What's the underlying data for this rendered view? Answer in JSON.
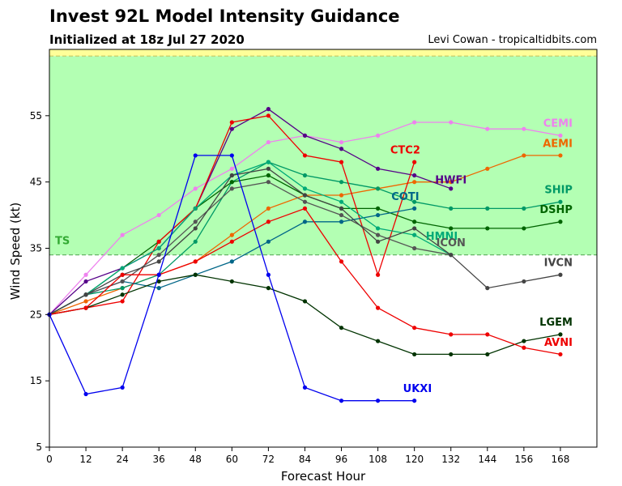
{
  "header": {
    "title": "Invest 92L Model Intensity Guidance",
    "subtitle": "Initialized at 18z Jul 27 2020",
    "credit": "Levi Cowan - tropicaltidbits.com"
  },
  "chart_data": {
    "type": "line",
    "xlabel": "Forecast Hour",
    "ylabel": "Wind Speed (kt)",
    "xlim": [
      0,
      180
    ],
    "ylim": [
      5,
      65
    ],
    "xticks": [
      0,
      12,
      24,
      36,
      48,
      60,
      72,
      84,
      96,
      108,
      120,
      132,
      144,
      156,
      168
    ],
    "yticks": [
      5,
      15,
      25,
      35,
      45,
      55
    ],
    "bands": [
      {
        "label": "TS",
        "from": 34,
        "to": 64,
        "color": "#b3ffb3",
        "label_color": "#33aa33",
        "edge_color": "#5cad5c"
      },
      {
        "label": "",
        "from": 64,
        "to": 65,
        "color": "#ffff99",
        "edge_color": "#c8c864"
      }
    ],
    "series": [
      {
        "name": "CEMI",
        "color": "#ee82ee",
        "x": [
          0,
          12,
          24,
          36,
          48,
          60,
          72,
          84,
          96,
          108,
          120,
          132,
          144,
          156,
          168
        ],
        "y": [
          25,
          31,
          37,
          40,
          44,
          47,
          51,
          52,
          51,
          52,
          54,
          54,
          53,
          53,
          52
        ]
      },
      {
        "name": "AEMI",
        "color": "#ee6600",
        "x": [
          0,
          12,
          24,
          36,
          48,
          60,
          72,
          84,
          96,
          108,
          120,
          132,
          144,
          156,
          168
        ],
        "y": [
          25,
          27,
          29,
          31,
          33,
          37,
          41,
          43,
          43,
          44,
          45,
          45,
          47,
          49,
          49
        ]
      },
      {
        "name": "SHIP",
        "color": "#009966",
        "x": [
          0,
          12,
          24,
          36,
          48,
          60,
          72,
          84,
          96,
          108,
          120,
          132,
          144,
          156,
          168
        ],
        "y": [
          25,
          28,
          29,
          31,
          36,
          45,
          48,
          46,
          45,
          44,
          42,
          41,
          41,
          41,
          42
        ]
      },
      {
        "name": "DSHP",
        "color": "#006400",
        "x": [
          0,
          12,
          24,
          36,
          48,
          60,
          72,
          84,
          96,
          108,
          120,
          132,
          144,
          156,
          168
        ],
        "y": [
          25,
          28,
          32,
          36,
          41,
          45,
          46,
          43,
          41,
          41,
          39,
          38,
          38,
          38,
          39
        ]
      },
      {
        "name": "HWFI",
        "color": "#550088",
        "x": [
          0,
          12,
          24,
          36,
          48,
          60,
          72,
          84,
          96,
          108,
          120,
          132
        ],
        "y": [
          25,
          30,
          32,
          35,
          41,
          53,
          56,
          52,
          50,
          47,
          46,
          44
        ]
      },
      {
        "name": "CTC2",
        "color": "#ee0000",
        "x": [
          0,
          12,
          24,
          36,
          48,
          60,
          72,
          84,
          96,
          108,
          120
        ],
        "y": [
          25,
          26,
          27,
          36,
          41,
          54,
          55,
          49,
          48,
          31,
          48
        ]
      },
      {
        "name": "COTI",
        "color": "#006688",
        "x": [
          0,
          12,
          24,
          36,
          48,
          60,
          72,
          84,
          96,
          108,
          120
        ],
        "y": [
          25,
          28,
          30,
          29,
          31,
          33,
          36,
          39,
          39,
          40,
          41
        ]
      },
      {
        "name": "HMNI",
        "color": "#00aa77",
        "x": [
          0,
          12,
          24,
          36,
          48,
          60,
          72,
          84,
          96,
          108,
          120,
          132
        ],
        "y": [
          25,
          28,
          32,
          35,
          41,
          46,
          48,
          44,
          42,
          38,
          37,
          34
        ]
      },
      {
        "name": "ICON",
        "color": "#555555",
        "x": [
          0,
          12,
          24,
          36,
          48,
          60,
          72,
          84,
          96,
          108,
          120,
          132
        ],
        "y": [
          25,
          28,
          30,
          34,
          39,
          44,
          45,
          42,
          40,
          37,
          35,
          34
        ]
      },
      {
        "name": "IVCN",
        "color": "#444444",
        "x": [
          0,
          12,
          24,
          36,
          48,
          60,
          72,
          84,
          96,
          108,
          120,
          132,
          144,
          156,
          168
        ],
        "y": [
          25,
          28,
          31,
          33,
          38,
          46,
          47,
          43,
          41,
          36,
          38,
          34,
          29,
          30,
          31
        ]
      },
      {
        "name": "LGEM",
        "color": "#003300",
        "x": [
          0,
          12,
          24,
          36,
          48,
          60,
          72,
          84,
          96,
          108,
          120,
          132,
          144,
          156,
          168
        ],
        "y": [
          25,
          26,
          28,
          30,
          31,
          30,
          29,
          27,
          23,
          21,
          19,
          19,
          19,
          21,
          22
        ]
      },
      {
        "name": "AVNI",
        "color": "#ee0000",
        "x": [
          0,
          12,
          24,
          36,
          48,
          60,
          72,
          84,
          96,
          108,
          120,
          132,
          144,
          156,
          168
        ],
        "y": [
          25,
          26,
          31,
          31,
          33,
          36,
          39,
          41,
          33,
          26,
          23,
          22,
          22,
          20,
          19
        ]
      },
      {
        "name": "UKXI",
        "color": "#0000ee",
        "x": [
          0,
          12,
          24,
          36,
          48,
          60,
          72,
          84,
          96,
          108,
          120
        ],
        "y": [
          25,
          13,
          14,
          31,
          49,
          49,
          31,
          14,
          12,
          12,
          12
        ]
      }
    ],
    "annotations": [
      {
        "text": "CEMI",
        "color": "#ee82ee",
        "x": 172,
        "y": 53.3,
        "anchor": "end"
      },
      {
        "text": "AEMI",
        "color": "#ee6600",
        "x": 172,
        "y": 50.3,
        "anchor": "end"
      },
      {
        "text": "CTC2",
        "color": "#ee0000",
        "x": 117,
        "y": 49.3,
        "anchor": "middle"
      },
      {
        "text": "HWFI",
        "color": "#550088",
        "x": 132,
        "y": 44.8,
        "anchor": "middle"
      },
      {
        "text": "SHIP",
        "color": "#009966",
        "x": 172,
        "y": 43.3,
        "anchor": "end"
      },
      {
        "text": "COTI",
        "color": "#006688",
        "x": 117,
        "y": 42.3,
        "anchor": "middle"
      },
      {
        "text": "DSHP",
        "color": "#006400",
        "x": 172,
        "y": 40.3,
        "anchor": "end"
      },
      {
        "text": "HMNI",
        "color": "#00aa77",
        "x": 129,
        "y": 36.3,
        "anchor": "middle"
      },
      {
        "text": "ICON",
        "color": "#555555",
        "x": 132,
        "y": 35.3,
        "anchor": "middle"
      },
      {
        "text": "IVCN",
        "color": "#444444",
        "x": 172,
        "y": 32.3,
        "anchor": "end"
      },
      {
        "text": "LGEM",
        "color": "#003300",
        "x": 172,
        "y": 23.3,
        "anchor": "end"
      },
      {
        "text": "AVNI",
        "color": "#ee0000",
        "x": 172,
        "y": 20.3,
        "anchor": "end"
      },
      {
        "text": "UKXI",
        "color": "#0000ee",
        "x": 121,
        "y": 13.3,
        "anchor": "middle"
      }
    ],
    "grid": false,
    "legend": "none"
  }
}
